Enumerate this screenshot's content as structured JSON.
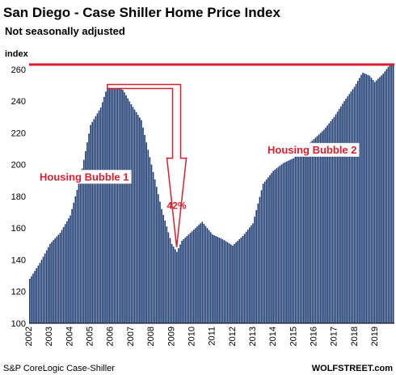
{
  "chart_data": {
    "type": "bar",
    "title": "San Diego - Case Shiller Home Price Index",
    "subtitle": "Not seasonally adjusted",
    "ylabel": "index",
    "ylim": [
      100,
      265
    ],
    "yticks": [
      100,
      120,
      140,
      160,
      180,
      200,
      220,
      240,
      260
    ],
    "x_years": [
      "2002",
      "2003",
      "2004",
      "2005",
      "2006",
      "2007",
      "2008",
      "2009",
      "2010",
      "2011",
      "2012",
      "2013",
      "2014",
      "2015",
      "2016",
      "2017",
      "2018",
      "2019"
    ],
    "anchors": [
      [
        2002.0,
        128
      ],
      [
        2002.5,
        138
      ],
      [
        2003.0,
        150
      ],
      [
        2003.5,
        157
      ],
      [
        2004.0,
        168
      ],
      [
        2004.5,
        192
      ],
      [
        2005.0,
        225
      ],
      [
        2005.5,
        236
      ],
      [
        2005.85,
        250
      ],
      [
        2006.25,
        249
      ],
      [
        2006.6,
        247
      ],
      [
        2007.0,
        238
      ],
      [
        2007.5,
        228
      ],
      [
        2008.0,
        200
      ],
      [
        2008.5,
        172
      ],
      [
        2009.0,
        150
      ],
      [
        2009.25,
        145
      ],
      [
        2009.5,
        152
      ],
      [
        2010.0,
        158
      ],
      [
        2010.5,
        164
      ],
      [
        2011.0,
        156
      ],
      [
        2011.5,
        153
      ],
      [
        2012.0,
        149
      ],
      [
        2012.5,
        155
      ],
      [
        2013.0,
        163
      ],
      [
        2013.5,
        188
      ],
      [
        2014.0,
        196
      ],
      [
        2014.5,
        201
      ],
      [
        2015.0,
        204
      ],
      [
        2015.5,
        210
      ],
      [
        2016.0,
        216
      ],
      [
        2016.5,
        222
      ],
      [
        2017.0,
        230
      ],
      [
        2017.5,
        240
      ],
      [
        2018.0,
        249
      ],
      [
        2018.4,
        258
      ],
      [
        2018.75,
        256
      ],
      [
        2019.0,
        252
      ],
      [
        2019.4,
        257
      ],
      [
        2019.75,
        263
      ]
    ],
    "reference_line": 263,
    "annotations": {
      "bubble1": "Housing Bubble 1",
      "bubble2": "Housing Bubble 2",
      "drop": "42%"
    },
    "source": "S&P CoreLogic Case-Shiller",
    "brand": "WOLFSTREET.com",
    "colors": {
      "bars": "#1f3d73",
      "accent": "#d62030"
    }
  }
}
